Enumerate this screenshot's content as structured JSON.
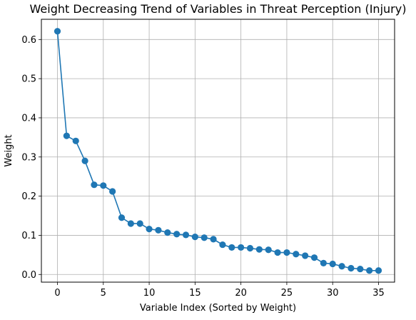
{
  "chart_data": {
    "type": "line",
    "title": "Weight Decreasing Trend of Variables in Threat Perception (Injury)",
    "xlabel": "Variable Index (Sorted by Weight)",
    "ylabel": "Weight",
    "x": [
      0,
      1,
      2,
      3,
      4,
      5,
      6,
      7,
      8,
      9,
      10,
      11,
      12,
      13,
      14,
      15,
      16,
      17,
      18,
      19,
      20,
      21,
      22,
      23,
      24,
      25,
      26,
      27,
      28,
      29,
      30,
      31,
      32,
      33,
      34,
      35
    ],
    "series": [
      {
        "values": [
          0.621,
          0.354,
          0.341,
          0.29,
          0.229,
          0.227,
          0.212,
          0.145,
          0.13,
          0.13,
          0.116,
          0.113,
          0.107,
          0.103,
          0.101,
          0.096,
          0.094,
          0.09,
          0.076,
          0.069,
          0.069,
          0.067,
          0.064,
          0.063,
          0.056,
          0.056,
          0.052,
          0.048,
          0.043,
          0.029,
          0.027,
          0.021,
          0.016,
          0.014,
          0.01,
          0.01
        ],
        "color": "#1f77b4"
      }
    ],
    "xlim": [
      -1.75,
      36.75
    ],
    "ylim": [
      -0.0196,
      0.6516
    ],
    "xticks": [
      0,
      5,
      10,
      15,
      20,
      25,
      30,
      35
    ],
    "xtick_labels": [
      "0",
      "5",
      "10",
      "15",
      "20",
      "25",
      "30",
      "35"
    ],
    "yticks": [
      0.0,
      0.1,
      0.2,
      0.3,
      0.4,
      0.5,
      0.6
    ],
    "ytick_labels": [
      "0.0",
      "0.1",
      "0.2",
      "0.3",
      "0.4",
      "0.5",
      "0.6"
    ],
    "grid": true,
    "markers": "circle"
  }
}
